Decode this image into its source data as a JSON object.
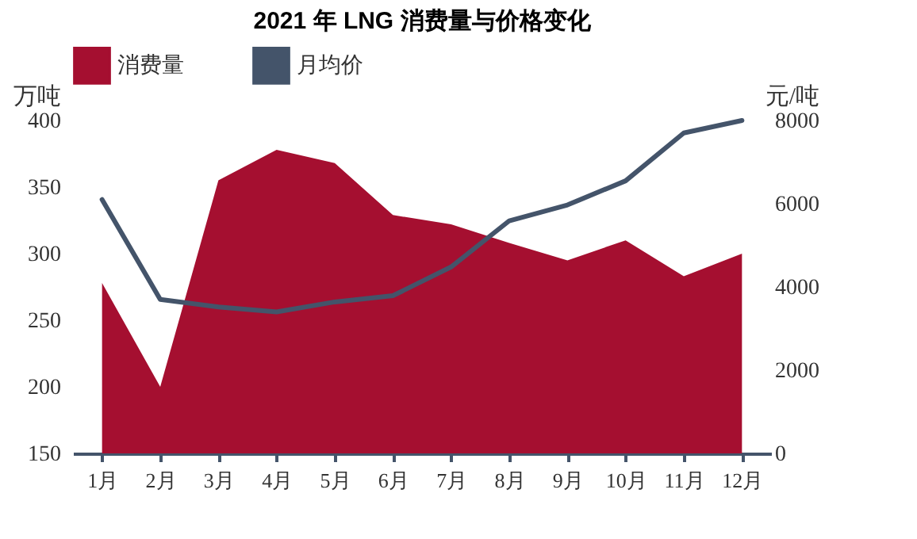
{
  "chart_data": {
    "type": "area",
    "title": "2021 年 LNG 消费量与价格变化",
    "ylabel": "万吨",
    "y2label": "元/吨",
    "categories": [
      "1月",
      "2月",
      "3月",
      "4月",
      "5月",
      "6月",
      "7月",
      "8月",
      "9月",
      "10月",
      "11月",
      "12月"
    ],
    "series": [
      {
        "name": "消费量",
        "color": "#a50f30",
        "values": [
          278,
          200,
          355,
          378,
          368,
          329,
          322,
          308,
          295,
          310,
          283,
          300
        ]
      },
      {
        "name": "月均价",
        "type": "line",
        "axis": "y2",
        "color": "#44546a",
        "values": [
          6100,
          3700,
          3520,
          3400,
          3640,
          3790,
          4480,
          5590,
          5970,
          6550,
          7700,
          8000
        ]
      }
    ],
    "ylim": [
      150,
      400
    ],
    "yticks": [
      150,
      200,
      250,
      300,
      350,
      400
    ],
    "y2lim": [
      0,
      8000
    ],
    "y2ticks": [
      0,
      2000,
      4000,
      6000,
      8000
    ],
    "grid": false,
    "legend": "top"
  }
}
